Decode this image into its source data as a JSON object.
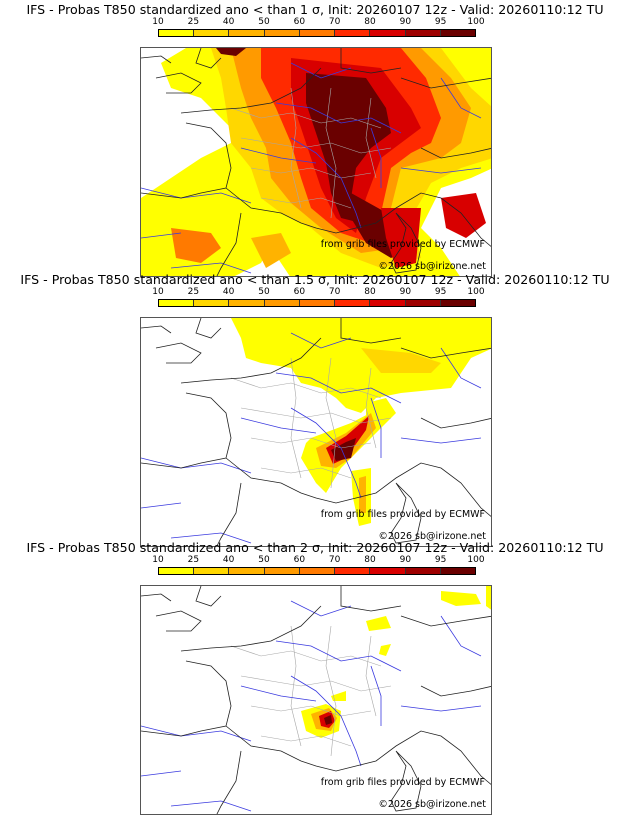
{
  "colorbar": {
    "ticks": [
      "10",
      "25",
      "40",
      "50",
      "60",
      "70",
      "80",
      "90",
      "95",
      "100"
    ],
    "colors": [
      "#ffff00",
      "#ffd700",
      "#ffb300",
      "#ff9a00",
      "#ff7a00",
      "#ff2a00",
      "#d80000",
      "#9e0000",
      "#6a0000"
    ]
  },
  "panels": [
    {
      "title": "IFS - Probas T850  standardized ano < than 1 σ, Init: 20260107 12z - Valid: 20260110:12 TU",
      "threshold": "1 σ",
      "credit_source": "from grib files provided by ECMWF",
      "credit_copyright": "©2026 sb@irizone.net"
    },
    {
      "title": "IFS - Probas T850  standardized ano < than 1.5 σ, Init: 20260107 12z - Valid: 20260110:12 TU",
      "threshold": "1.5 σ",
      "credit_source": "from grib files provided by ECMWF",
      "credit_copyright": "©2026 sb@irizone.net"
    },
    {
      "title": "IFS - Probas T850  standardized ano < than 2 σ, Init: 20260107 12z - Valid: 20260110:12 TU",
      "threshold": "2 σ",
      "credit_source": "from grib files provided by ECMWF",
      "credit_copyright": "©2026 sb@irizone.net"
    }
  ],
  "colors": {
    "coast": "#222222",
    "rivers": "#3a3adf",
    "admin": "#a8a8a8"
  }
}
